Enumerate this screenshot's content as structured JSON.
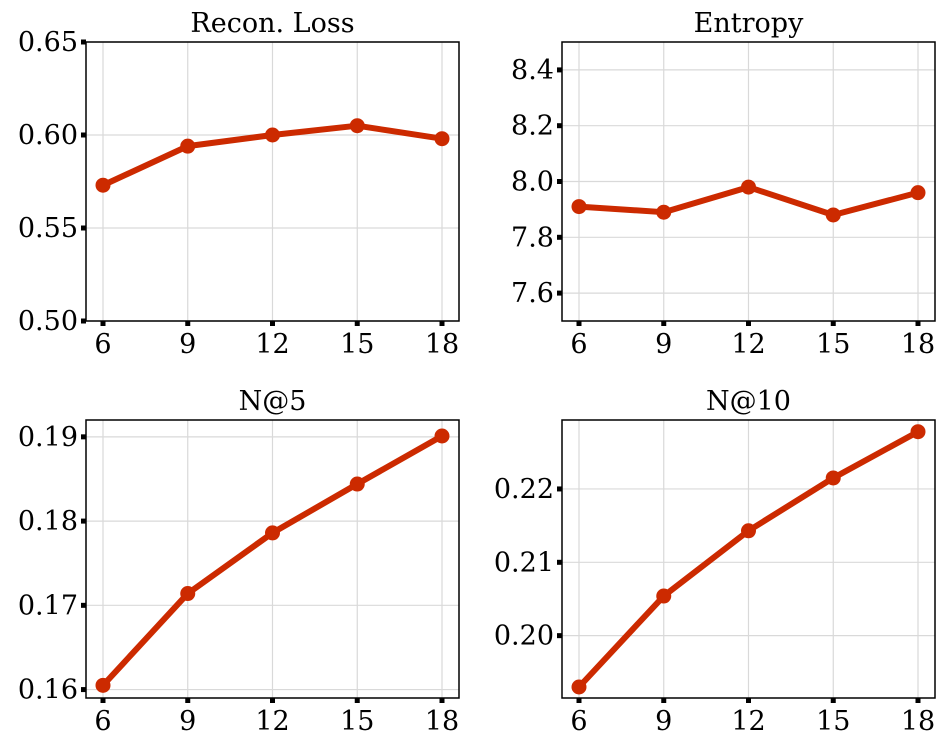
{
  "chart_data": [
    {
      "type": "line",
      "title": "Recon. Loss",
      "xlabel": "",
      "ylabel": "",
      "x": [
        6,
        9,
        12,
        15,
        18
      ],
      "series": [
        {
          "values": [
            0.573,
            0.594,
            0.6,
            0.605,
            0.598
          ]
        }
      ],
      "xticks": [
        "6",
        "9",
        "12",
        "15",
        "18"
      ],
      "yticks": [
        0.5,
        0.55,
        0.6,
        0.65
      ],
      "ytick_labels": [
        "0.50",
        "0.55",
        "0.60",
        "0.65"
      ],
      "ylim": [
        0.5,
        0.65
      ],
      "grid": true
    },
    {
      "type": "line",
      "title": "Entropy",
      "xlabel": "",
      "ylabel": "",
      "x": [
        6,
        9,
        12,
        15,
        18
      ],
      "series": [
        {
          "values": [
            7.91,
            7.89,
            7.98,
            7.88,
            7.96
          ]
        }
      ],
      "xticks": [
        "6",
        "9",
        "12",
        "15",
        "18"
      ],
      "yticks": [
        7.6,
        7.8,
        8.0,
        8.2,
        8.4
      ],
      "ytick_labels": [
        "7.6",
        "7.8",
        "8.0",
        "8.2",
        "8.4"
      ],
      "ylim": [
        7.5,
        8.5
      ],
      "grid": true
    },
    {
      "type": "line",
      "title": "N@5",
      "xlabel": "",
      "ylabel": "",
      "x": [
        6,
        9,
        12,
        15,
        18
      ],
      "series": [
        {
          "values": [
            0.1605,
            0.1714,
            0.1786,
            0.1844,
            0.1901
          ]
        }
      ],
      "xticks": [
        "6",
        "9",
        "12",
        "15",
        "18"
      ],
      "yticks": [
        0.16,
        0.17,
        0.18,
        0.19
      ],
      "ytick_labels": [
        "0.16",
        "0.17",
        "0.18",
        "0.19"
      ],
      "ylim": [
        0.159,
        0.192
      ],
      "grid": true
    },
    {
      "type": "line",
      "title": "N@10",
      "xlabel": "",
      "ylabel": "",
      "x": [
        6,
        9,
        12,
        15,
        18
      ],
      "series": [
        {
          "values": [
            0.193,
            0.2054,
            0.2143,
            0.2215,
            0.2278
          ]
        }
      ],
      "xticks": [
        "6",
        "9",
        "12",
        "15",
        "18"
      ],
      "yticks": [
        0.2,
        0.21,
        0.22
      ],
      "ytick_labels": [
        "0.20",
        "0.21",
        "0.22"
      ],
      "ylim": [
        0.1915,
        0.2294
      ],
      "grid": true
    }
  ],
  "style": {
    "line_color": "#cc2a00",
    "grid_color": "#d9d9d9",
    "axis_color": "#000000"
  }
}
